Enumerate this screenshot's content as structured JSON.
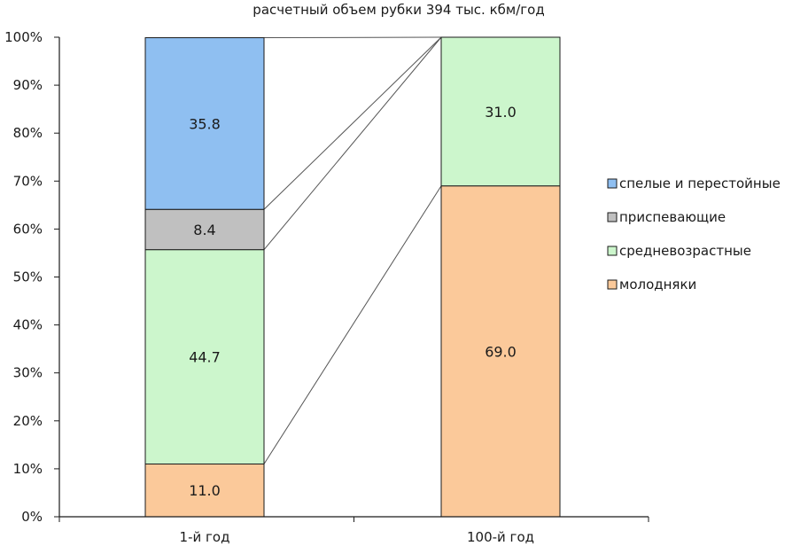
{
  "chart_data": {
    "type": "bar",
    "stacked": true,
    "title": "расчетный объем рубки 394 тыс. кбм/год",
    "categories": [
      "1-й год",
      "100-й год"
    ],
    "series": [
      {
        "name": "молодняки",
        "values": [
          11.0,
          69.0
        ],
        "color": "#fbc99a"
      },
      {
        "name": "средневозрастные",
        "values": [
          44.7,
          31.0
        ],
        "color": "#ccf6cc"
      },
      {
        "name": "приспевающие",
        "values": [
          8.4,
          0
        ],
        "color": "#c0c0c0"
      },
      {
        "name": "спелые и перестойные",
        "values": [
          35.8,
          0
        ],
        "color": "#8fbff1"
      }
    ],
    "data_labels": [
      [
        "11.0",
        "44.7",
        "8.4",
        "35.8"
      ],
      [
        "69.0",
        "31.0",
        "",
        ""
      ]
    ],
    "legend_order": [
      "спелые и перестойные",
      "приспевающие",
      "средневозрастные",
      "молодняки"
    ],
    "y_ticks": [
      "0%",
      "10%",
      "20%",
      "30%",
      "40%",
      "50%",
      "60%",
      "70%",
      "80%",
      "90%",
      "100%"
    ],
    "ylim": [
      0,
      100
    ],
    "legend": "right",
    "grid": false
  }
}
